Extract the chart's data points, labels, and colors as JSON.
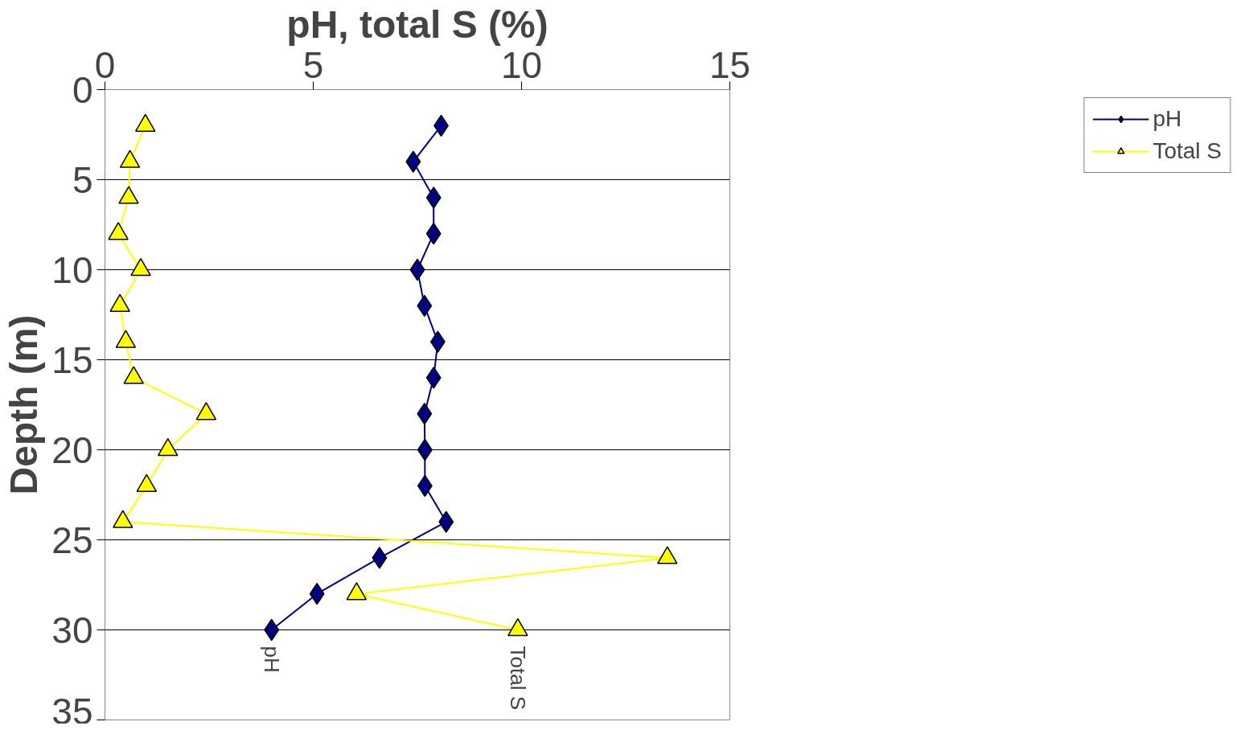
{
  "chart_data": {
    "type": "line",
    "xlabel": "pH, total S (%)",
    "ylabel": "Depth (m)",
    "xlim": [
      0,
      15
    ],
    "xticks": [
      0,
      5,
      10,
      15
    ],
    "ylim": [
      35,
      0
    ],
    "yticks": [
      0,
      5,
      10,
      15,
      20,
      25,
      30,
      35
    ],
    "grid": "y",
    "legend": "right",
    "line_style": "solid",
    "series": [
      {
        "name": "pH",
        "color": "#000080",
        "marker": "diamond",
        "x": [
          8.07,
          7.4,
          7.89,
          7.89,
          7.5,
          7.67,
          7.99,
          7.89,
          7.67,
          7.68,
          7.68,
          8.19,
          6.59,
          5.09,
          4.0
        ],
        "values": [
          2,
          4,
          6,
          8,
          10,
          12,
          14,
          16,
          18,
          20,
          22,
          24,
          26,
          28,
          30
        ]
      },
      {
        "name": "Total S",
        "color": "#ffff00",
        "marker": "triangle",
        "x": [
          0.97,
          0.6,
          0.57,
          0.32,
          0.86,
          0.36,
          0.5,
          0.69,
          2.43,
          1.51,
          1.0,
          0.43,
          13.5,
          6.04,
          9.91
        ],
        "values": [
          2,
          4,
          6,
          8,
          10,
          12,
          14,
          16,
          18,
          20,
          22,
          24,
          26,
          28,
          30
        ]
      }
    ],
    "annotations": [
      {
        "text": "pH",
        "x": 4.0,
        "y": 30
      },
      {
        "text": "Total S",
        "x": 9.91,
        "y": 30
      }
    ]
  }
}
